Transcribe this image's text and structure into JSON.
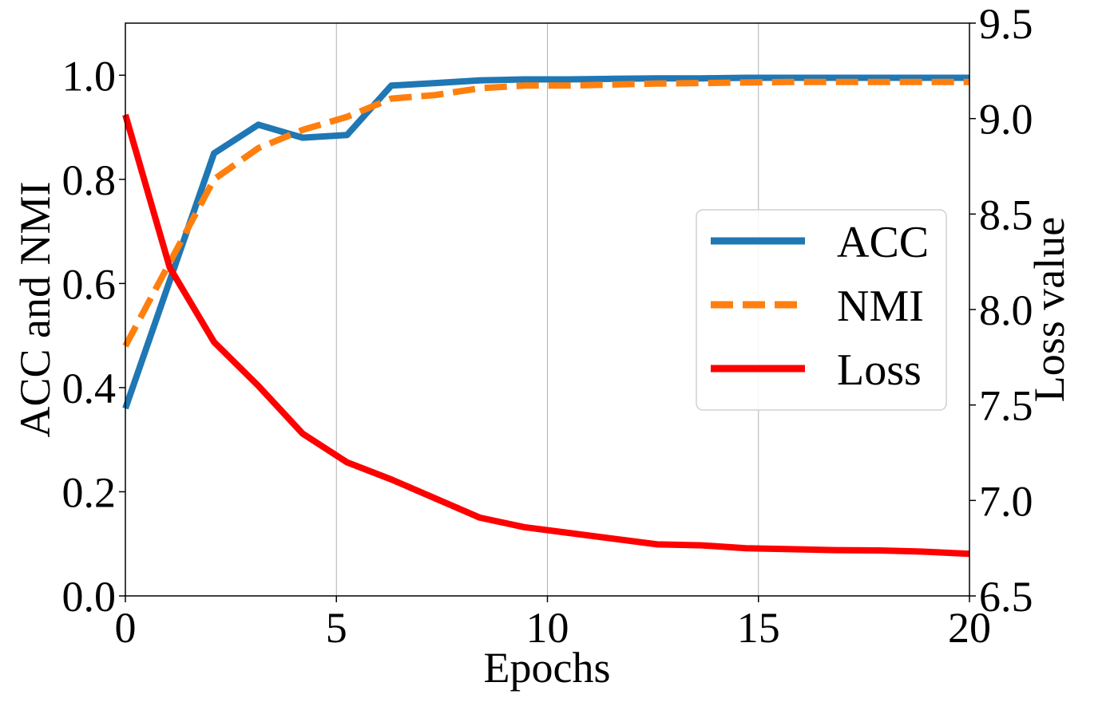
{
  "chart_data": {
    "type": "line",
    "title": "",
    "xlabel": "Epochs",
    "ylabel_left": "ACC and NMI",
    "ylabel_right": "Loss value",
    "xlim": [
      0,
      20
    ],
    "ylim_left": [
      0,
      1.1
    ],
    "ylim_right": [
      6.5,
      9.5
    ],
    "xticks": [
      0,
      5,
      10,
      15,
      20
    ],
    "xtick_labels": [
      "0",
      "5",
      "10",
      "15",
      "20"
    ],
    "yticks_left": [
      0.0,
      0.2,
      0.4,
      0.6,
      0.8,
      1.0
    ],
    "ytick_labels_left": [
      "0.0",
      "0.2",
      "0.4",
      "0.6",
      "0.8",
      "1.0"
    ],
    "yticks_right": [
      6.5,
      7.0,
      7.5,
      8.0,
      8.5,
      9.0,
      9.5
    ],
    "ytick_labels_right": [
      "6.5",
      "7.0",
      "7.5",
      "8.0",
      "8.5",
      "9.0",
      "9.5"
    ],
    "grid": "vertical",
    "legend_position": "center-right",
    "series": [
      {
        "name": "ACC",
        "axis": "left",
        "color": "#1f77b4",
        "style": "solid",
        "x": [
          0,
          2.1,
          3.15,
          4.2,
          5.25,
          6.3,
          7.35,
          8.4,
          9.45,
          10.5,
          11.55,
          12.6,
          13.65,
          14.7,
          15.75,
          16.8,
          17.85,
          18.9,
          20
        ],
        "values": [
          0.36,
          0.85,
          0.905,
          0.88,
          0.885,
          0.98,
          0.985,
          0.99,
          0.992,
          0.992,
          0.993,
          0.994,
          0.994,
          0.995,
          0.995,
          0.995,
          0.995,
          0.995,
          0.995
        ]
      },
      {
        "name": "NMI",
        "axis": "left",
        "color": "#ff7f0e",
        "style": "dashed",
        "x": [
          0,
          2.1,
          3.15,
          4.2,
          5.25,
          6.3,
          7.35,
          8.4,
          9.45,
          10.5,
          11.55,
          12.6,
          13.65,
          14.7,
          15.75,
          16.8,
          17.85,
          18.9,
          20
        ],
        "values": [
          0.48,
          0.8,
          0.86,
          0.895,
          0.92,
          0.955,
          0.962,
          0.975,
          0.98,
          0.98,
          0.982,
          0.984,
          0.985,
          0.986,
          0.987,
          0.987,
          0.987,
          0.987,
          0.987
        ]
      },
      {
        "name": "Loss",
        "axis": "right",
        "color": "#ff0000",
        "style": "solid",
        "x": [
          0,
          1.05,
          2.1,
          3.15,
          4.2,
          5.25,
          6.3,
          7.35,
          8.4,
          9.45,
          10.5,
          11.55,
          12.6,
          13.65,
          14.7,
          15.75,
          16.8,
          17.85,
          18.9,
          20
        ],
        "values": [
          9.02,
          8.22,
          7.83,
          7.6,
          7.35,
          7.2,
          7.11,
          7.01,
          6.91,
          6.86,
          6.83,
          6.8,
          6.77,
          6.765,
          6.75,
          6.745,
          6.74,
          6.738,
          6.732,
          6.72
        ]
      }
    ]
  }
}
